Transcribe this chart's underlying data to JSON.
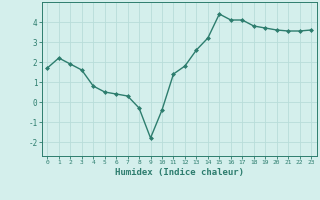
{
  "x": [
    0,
    1,
    2,
    3,
    4,
    5,
    6,
    7,
    8,
    9,
    10,
    11,
    12,
    13,
    14,
    15,
    16,
    17,
    18,
    19,
    20,
    21,
    22,
    23
  ],
  "y": [
    1.7,
    2.2,
    1.9,
    1.6,
    0.8,
    0.5,
    0.4,
    0.3,
    -0.3,
    -1.8,
    -0.4,
    1.4,
    1.8,
    2.6,
    3.2,
    4.4,
    4.1,
    4.1,
    3.8,
    3.7,
    3.6,
    3.55,
    3.55,
    3.6
  ],
  "xlabel": "Humidex (Indice chaleur)",
  "xlim": [
    -0.5,
    23.5
  ],
  "ylim": [
    -2.7,
    5.0
  ],
  "yticks": [
    -2,
    -1,
    0,
    1,
    2,
    3,
    4
  ],
  "xticks": [
    0,
    1,
    2,
    3,
    4,
    5,
    6,
    7,
    8,
    9,
    10,
    11,
    12,
    13,
    14,
    15,
    16,
    17,
    18,
    19,
    20,
    21,
    22,
    23
  ],
  "line_color": "#2d7d6e",
  "marker": "D",
  "marker_size": 2.0,
  "bg_color": "#d4efec",
  "grid_color": "#b8ddd9",
  "tick_color": "#2d7d6e",
  "label_color": "#2d7d6e",
  "line_width": 1.0
}
